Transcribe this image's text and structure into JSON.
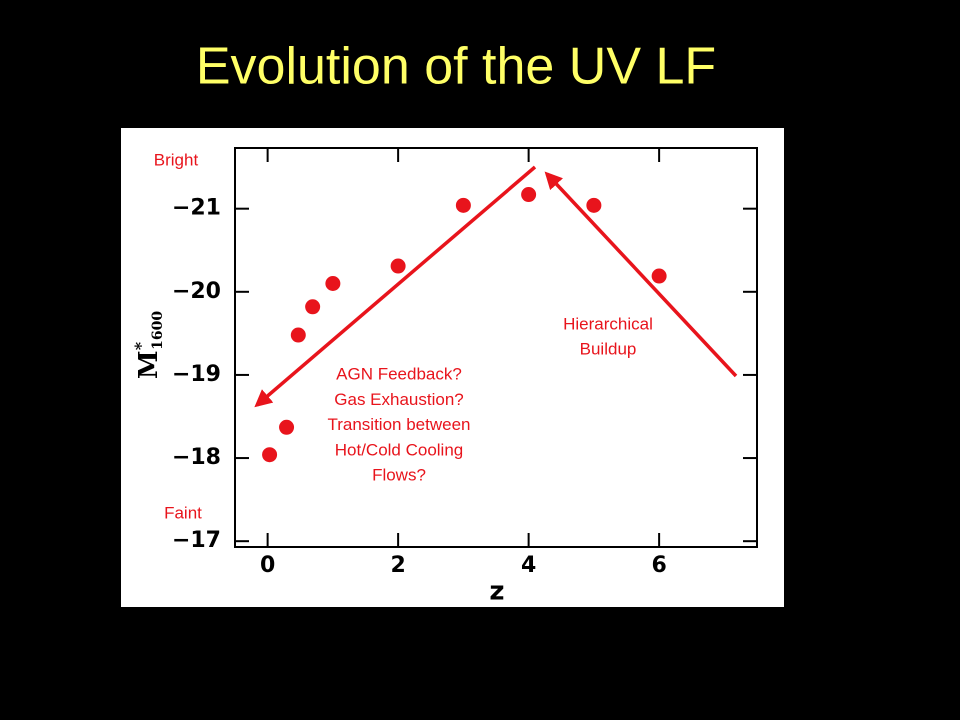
{
  "title": "Evolution of the UV LF",
  "chart_data": {
    "type": "scatter",
    "xlabel": "z",
    "ylabel": {
      "main": "M",
      "sup": "*",
      "sub": "1600"
    },
    "x": [
      0.03,
      0.29,
      0.47,
      0.69,
      1.0,
      2.0,
      3.0,
      4.0,
      5.0,
      6.0
    ],
    "values": [
      -18.04,
      -18.37,
      -19.48,
      -19.82,
      -20.1,
      -20.31,
      -21.04,
      -21.17,
      -21.04,
      -20.19
    ],
    "color": "#e8141c",
    "xlim": [
      -0.5,
      7.5
    ],
    "xticks": [
      0,
      2,
      4,
      6
    ],
    "ylim": [
      -16.93,
      -21.73
    ],
    "yticks": [
      {
        "value": -21,
        "label": "−21"
      },
      {
        "value": -20,
        "label": "−20"
      },
      {
        "value": -19,
        "label": "−19"
      },
      {
        "value": -18,
        "label": "−18"
      },
      {
        "value": -17,
        "label": "−17"
      }
    ],
    "annotations": {
      "bright": "Bright",
      "faint": "Faint",
      "feedback": [
        "AGN Feedback?",
        "Gas Exhaustion?",
        "Transition between",
        "Hot/Cold Cooling",
        "Flows?"
      ],
      "buildup": [
        "Hierarchical",
        "Buildup"
      ]
    }
  }
}
